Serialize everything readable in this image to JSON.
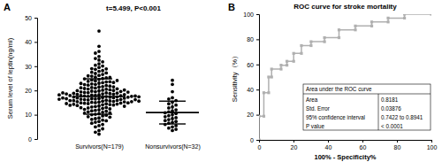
{
  "chart_data": [
    {
      "type": "scatter",
      "panel_label": "A",
      "annotation": "t=5.499, P<0.001",
      "y_label": "Serum level of leptin(ng/ml)",
      "categories": [
        "Survivors(N=179)",
        "Nonsurvivors(N=32)"
      ],
      "values": [
        [
          44.5,
          38.2,
          36.1,
          35.4,
          34.0,
          33.2,
          32.5,
          31.8,
          31.0,
          30.4,
          30.1,
          29.5,
          29.0,
          28.7,
          28.2,
          27.9,
          27.5,
          27.0,
          26.6,
          26.2,
          25.9,
          25.5,
          25.2,
          24.9,
          24.6,
          24.3,
          24.0,
          23.8,
          23.5,
          23.2,
          23.0,
          22.7,
          22.5,
          22.2,
          22.0,
          21.8,
          21.6,
          21.4,
          21.2,
          21.0,
          20.8,
          20.6,
          20.5,
          20.3,
          20.1,
          20.0,
          19.8,
          19.7,
          19.5,
          19.4,
          19.2,
          19.1,
          19.0,
          18.9,
          18.7,
          18.6,
          18.5,
          18.4,
          18.2,
          18.1,
          18.0,
          17.9,
          17.8,
          17.7,
          17.6,
          17.5,
          17.4,
          17.3,
          17.2,
          17.1,
          17.0,
          16.9,
          16.8,
          16.7,
          16.6,
          16.5,
          16.4,
          16.3,
          16.2,
          16.1,
          16.0,
          15.9,
          15.8,
          15.7,
          15.6,
          15.5,
          15.4,
          15.3,
          15.2,
          15.1,
          15.0,
          14.9,
          14.8,
          14.7,
          14.6,
          14.5,
          14.4,
          14.3,
          14.2,
          14.1,
          14.0,
          13.8,
          13.6,
          13.4,
          13.2,
          13.0,
          12.8,
          12.6,
          12.4,
          12.2,
          12.0,
          11.8,
          11.6,
          11.4,
          11.2,
          11.0,
          10.8,
          10.6,
          10.4,
          10.2,
          10.0,
          9.8,
          9.5,
          9.2,
          9.0,
          8.7,
          8.4,
          8.1,
          7.8,
          7.5,
          7.2,
          6.9,
          6.5,
          6.0,
          5.5,
          5.0,
          4.2,
          3.5,
          2.8,
          2.0,
          19.6,
          18.8,
          17.9,
          17.2,
          16.6,
          15.8,
          14.9,
          22.4,
          23.6,
          24.8,
          26.0,
          21.5,
          20.7,
          19.9,
          18.3,
          17.6,
          16.9,
          16.2,
          15.4,
          14.6,
          13.9,
          21.1,
          22.9,
          25.4,
          27.2,
          28.9,
          19.3,
          18.6,
          17.7,
          16.4,
          15.6,
          13.5,
          12.9,
          20.2,
          23.3,
          24.1,
          17.4,
          18.2,
          19.0
        ],
        [
          24.2,
          22.5,
          19.5,
          17.0,
          16.5,
          15.8,
          15.2,
          14.5,
          14.0,
          13.2,
          12.8,
          12.0,
          11.5,
          11.2,
          10.8,
          10.5,
          10.0,
          9.6,
          9.2,
          8.8,
          8.4,
          8.0,
          7.6,
          7.2,
          6.8,
          6.5,
          6.0,
          5.5,
          5.0,
          4.5,
          4.0,
          3.5
        ]
      ],
      "mean": [
        17.5,
        10.9
      ],
      "sd": [
        7.3,
        4.7
      ],
      "ylim": [
        0,
        50
      ],
      "yticks": [
        0,
        10,
        20,
        30,
        40,
        50
      ],
      "color": "#000000",
      "marker": "circle"
    },
    {
      "type": "line",
      "panel_label": "B",
      "title": "ROC curve for stroke mortality",
      "x_label": "100% - Specificity%",
      "y_label": "Sensitivity（%）",
      "x": [
        0,
        0,
        2.8,
        2.8,
        5.6,
        5.6,
        7.3,
        7.3,
        12.8,
        12.8,
        16.2,
        16.2,
        20.1,
        20.1,
        24.6,
        24.6,
        30.2,
        30.2,
        38.0,
        38.0,
        46.4,
        46.4,
        55.9,
        55.9,
        65.4,
        65.4,
        74.9,
        74.9,
        84.4,
        84.4,
        100
      ],
      "y": [
        0,
        18.8,
        18.8,
        37.5,
        37.5,
        50,
        50,
        56.3,
        56.3,
        59.4,
        59.4,
        62.5,
        62.5,
        68.8,
        68.8,
        75,
        75,
        78.1,
        78.1,
        81.3,
        81.3,
        87.5,
        87.5,
        90.6,
        90.6,
        93.8,
        93.8,
        96.9,
        96.9,
        100,
        100
      ],
      "xlim": [
        0,
        100
      ],
      "ylim": [
        0,
        100
      ],
      "xticks": [
        0,
        20,
        40,
        60,
        80,
        100
      ],
      "yticks": [
        0,
        20,
        40,
        60,
        80,
        100
      ],
      "color": "#b0b0b0",
      "marker": "square",
      "table": {
        "title": "Area under the ROC curve",
        "rows": [
          [
            "Area",
            "0.8181"
          ],
          [
            "Std. Error",
            "0.03876"
          ],
          [
            "95% confidence interval",
            "0.7422 to 0.8941"
          ],
          [
            "P value",
            "< 0.0001"
          ]
        ]
      }
    }
  ]
}
